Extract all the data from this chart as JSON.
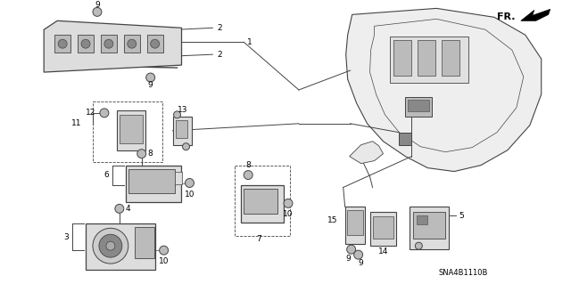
{
  "background_color": "#ffffff",
  "diagram_code": "SNA4B1110B",
  "fr_label": "FR.",
  "fig_width": 6.4,
  "fig_height": 3.19,
  "dpi": 100,
  "line_color": "#444444",
  "part_color": "#bbbbbb",
  "part_color_dark": "#888888",
  "part_color_light": "#dddddd"
}
